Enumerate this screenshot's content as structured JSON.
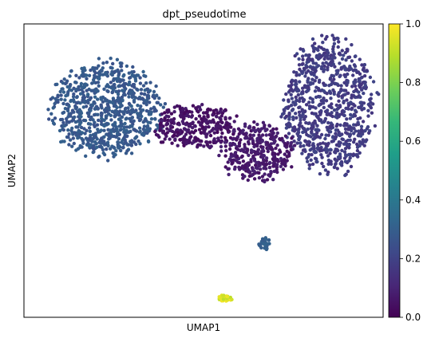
{
  "chart_data": {
    "type": "scatter",
    "title": "dpt_pseudotime",
    "xlabel": "UMAP1",
    "ylabel": "UMAP2",
    "x_ticks": [],
    "y_ticks": [],
    "xlim": [
      0,
      10
    ],
    "ylim": [
      0,
      10
    ],
    "grid": false,
    "legend": "none",
    "colorbar": {
      "range": [
        0.0,
        1.0
      ],
      "ticks": [
        "0.0",
        "0.2",
        "0.4",
        "0.6",
        "0.8",
        "1.0"
      ],
      "colormap": "viridis",
      "stops": [
        "#440154",
        "#482878",
        "#3e4989",
        "#31688e",
        "#26828e",
        "#1f9e89",
        "#35b779",
        "#6ece58",
        "#b5de2b",
        "#fde725"
      ]
    },
    "clusters": [
      {
        "name": "left lobe",
        "cx": 2.3,
        "cy": 7.1,
        "rx": 1.7,
        "ry": 1.8,
        "n": 820,
        "value": 0.28,
        "spread": 0.03
      },
      {
        "name": "right lobe",
        "cx": 8.5,
        "cy": 7.2,
        "rx": 1.4,
        "ry": 2.6,
        "n": 820,
        "value": 0.18,
        "spread": 0.03
      },
      {
        "name": "bridge left",
        "cx": 4.8,
        "cy": 6.5,
        "rx": 1.3,
        "ry": 0.85,
        "n": 320,
        "value": 0.05,
        "spread": 0.03
      },
      {
        "name": "bridge right",
        "cx": 6.5,
        "cy": 5.6,
        "rx": 1.1,
        "ry": 1.1,
        "n": 360,
        "value": 0.07,
        "spread": 0.03
      },
      {
        "name": "small cluster",
        "cx": 6.7,
        "cy": 2.5,
        "rx": 0.17,
        "ry": 0.25,
        "n": 35,
        "value": 0.3,
        "spread": 0.02
      },
      {
        "name": "tip cluster",
        "cx": 5.6,
        "cy": 0.65,
        "rx": 0.22,
        "ry": 0.14,
        "n": 30,
        "value": 0.95,
        "spread": 0.05
      }
    ]
  }
}
